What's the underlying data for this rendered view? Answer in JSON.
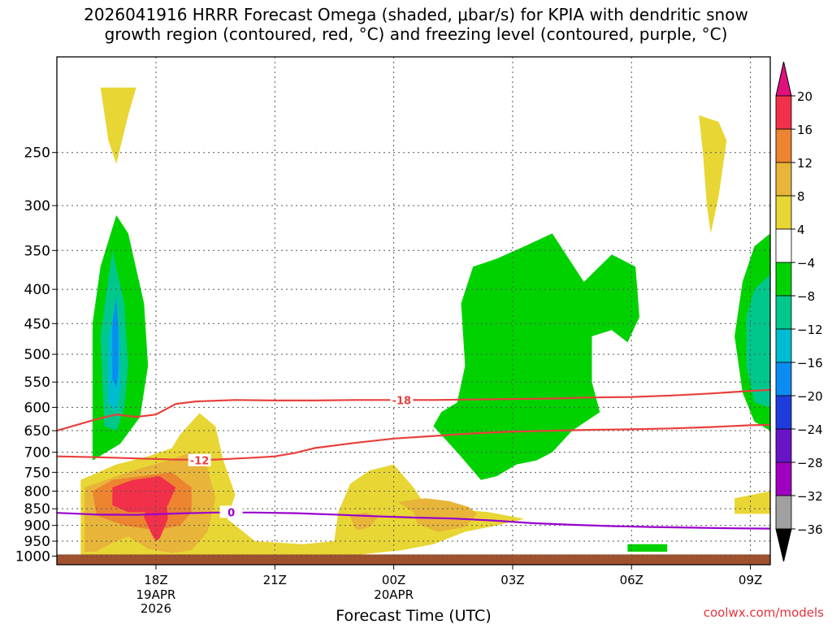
{
  "title_lines": [
    "2026041916 HRRR Forecast Omega (shaded, μbar/s) for KPIA with dendritic snow",
    "growth region (contoured, red, °C) and freezing level (contoured, purple, °C)"
  ],
  "credit": "coolwx.com/models",
  "colors": {
    "ground": "#a0522d",
    "grid": "#555555",
    "dgz_contour": "#e8403c",
    "freezing_contour": "#9900cc"
  },
  "chart_data": {
    "type": "heatmap",
    "xlabel": "Forecast Time (UTC)",
    "ylabel": "",
    "xlim_hours": [
      15.5,
      33.5
    ],
    "ylim_hpa": [
      1030,
      180
    ],
    "x_ticks": [
      {
        "hour": 18,
        "label": "18Z",
        "sub1": "19APR",
        "sub2": "2026"
      },
      {
        "hour": 21,
        "label": "21Z",
        "sub1": "",
        "sub2": ""
      },
      {
        "hour": 24,
        "label": "00Z",
        "sub1": "20APR",
        "sub2": ""
      },
      {
        "hour": 27,
        "label": "03Z",
        "sub1": "",
        "sub2": ""
      },
      {
        "hour": 30,
        "label": "06Z",
        "sub1": "",
        "sub2": ""
      },
      {
        "hour": 33,
        "label": "09Z",
        "sub1": "",
        "sub2": ""
      }
    ],
    "y_ticks": [
      250,
      300,
      350,
      400,
      450,
      500,
      550,
      600,
      650,
      700,
      750,
      800,
      850,
      900,
      950,
      1000
    ],
    "colorbar": {
      "labels": [
        "20",
        "16",
        "12",
        "8",
        "4",
        "−4",
        "−8",
        "−12",
        "−16",
        "−20",
        "−24",
        "−28",
        "−32",
        "−36"
      ],
      "bins": [
        {
          "range": "16 to 20",
          "color": "#f2304a"
        },
        {
          "range": "12 to 16",
          "color": "#ec8430"
        },
        {
          "range": "8 to 12",
          "color": "#e8b43a"
        },
        {
          "range": "4 to 8",
          "color": "#e8d634"
        },
        {
          "range": "-4 to 4",
          "color": "#ffffff"
        },
        {
          "range": "-8 to -4",
          "color": "#00d200"
        },
        {
          "range": "-12 to -8",
          "color": "#00c88c"
        },
        {
          "range": "-16 to -12",
          "color": "#00bcd2"
        },
        {
          "range": "-20 to -16",
          "color": "#0a8cf0"
        },
        {
          "range": "-24 to -20",
          "color": "#1e3cdc"
        },
        {
          "range": "-28 to -24",
          "color": "#6a14c8"
        },
        {
          "range": "-32 to -28",
          "color": "#a000c0"
        },
        {
          "range": "-36 to -32",
          "color": "#a0a0a0"
        }
      ],
      "top_arrow_color": "#e0107c",
      "bottom_arrow_color": "#000000"
    },
    "contours": [
      {
        "name": "dgz_-18",
        "label": "-18",
        "color": "#e8403c",
        "label_at": {
          "hour": 24.2,
          "hpa": 585
        },
        "points": [
          [
            15.5,
            650
          ],
          [
            16.5,
            625
          ],
          [
            17.0,
            615
          ],
          [
            17.5,
            620
          ],
          [
            18.0,
            615
          ],
          [
            18.5,
            593
          ],
          [
            19.0,
            588
          ],
          [
            20.0,
            585
          ],
          [
            21.0,
            586
          ],
          [
            22.0,
            586
          ],
          [
            23.0,
            585
          ],
          [
            24.0,
            585
          ],
          [
            25.0,
            585
          ],
          [
            26.0,
            584
          ],
          [
            27.0,
            583
          ],
          [
            28.0,
            582
          ],
          [
            29.0,
            580
          ],
          [
            30.0,
            579
          ],
          [
            31.0,
            576
          ],
          [
            32.0,
            572
          ],
          [
            33.0,
            567
          ],
          [
            33.5,
            565
          ]
        ]
      },
      {
        "name": "dgz_-12",
        "label": "-12",
        "color": "#e8403c",
        "label_at": {
          "hour": 19.1,
          "hpa": 720
        },
        "points": [
          [
            15.5,
            710
          ],
          [
            16.5,
            712
          ],
          [
            17.5,
            715
          ],
          [
            18.5,
            718
          ],
          [
            19.5,
            718
          ],
          [
            20.5,
            713
          ],
          [
            21.0,
            710
          ],
          [
            21.5,
            702
          ],
          [
            22.0,
            690
          ],
          [
            23.0,
            678
          ],
          [
            24.0,
            668
          ],
          [
            25.0,
            662
          ],
          [
            26.0,
            656
          ],
          [
            27.0,
            652
          ],
          [
            28.0,
            650
          ],
          [
            29.0,
            648
          ],
          [
            30.0,
            647
          ],
          [
            31.0,
            645
          ],
          [
            32.0,
            642
          ],
          [
            33.0,
            638
          ],
          [
            33.5,
            637
          ]
        ]
      },
      {
        "name": "freezing_0",
        "label": "0",
        "color": "#9900cc",
        "label_at": {
          "hour": 19.9,
          "hpa": 860
        },
        "points": [
          [
            15.5,
            862
          ],
          [
            16.5,
            867
          ],
          [
            17.5,
            868
          ],
          [
            18.5,
            864
          ],
          [
            19.5,
            861
          ],
          [
            20.5,
            861
          ],
          [
            21.5,
            863
          ],
          [
            22.5,
            867
          ],
          [
            23.5,
            872
          ],
          [
            24.5,
            876
          ],
          [
            25.5,
            879
          ],
          [
            26.5,
            885
          ],
          [
            27.5,
            893
          ],
          [
            28.5,
            898
          ],
          [
            29.5,
            902
          ],
          [
            30.5,
            905
          ],
          [
            31.5,
            907
          ],
          [
            32.5,
            909
          ],
          [
            33.5,
            910
          ]
        ]
      }
    ],
    "omega_regions": [
      {
        "bin": "-8 to -4",
        "points": [
          [
            16.4,
            720
          ],
          [
            16.4,
            450
          ],
          [
            16.6,
            370
          ],
          [
            17.0,
            310
          ],
          [
            17.3,
            330
          ],
          [
            17.7,
            420
          ],
          [
            17.8,
            520
          ],
          [
            17.6,
            620
          ],
          [
            17.1,
            680
          ]
        ]
      },
      {
        "bin": "-12 to -8",
        "points": [
          [
            16.7,
            640
          ],
          [
            16.6,
            470
          ],
          [
            16.9,
            350
          ],
          [
            17.2,
            420
          ],
          [
            17.3,
            520
          ],
          [
            17.2,
            600
          ],
          [
            17.0,
            650
          ]
        ]
      },
      {
        "bin": "-16 to -12",
        "points": [
          [
            16.8,
            590
          ],
          [
            16.8,
            470
          ],
          [
            17.0,
            420
          ],
          [
            17.1,
            480
          ],
          [
            17.1,
            560
          ],
          [
            17.0,
            610
          ]
        ]
      },
      {
        "bin": "-20 to -16",
        "points": [
          [
            16.9,
            545
          ],
          [
            16.9,
            450
          ],
          [
            17.0,
            410
          ],
          [
            17.05,
            455
          ],
          [
            17.05,
            530
          ],
          [
            17.0,
            560
          ]
        ]
      },
      {
        "bin": "-8 to -4",
        "points": [
          [
            26.2,
            770
          ],
          [
            25.6,
            700
          ],
          [
            25.0,
            640
          ],
          [
            25.2,
            610
          ],
          [
            25.6,
            590
          ],
          [
            25.8,
            520
          ],
          [
            25.7,
            420
          ],
          [
            26.0,
            370
          ],
          [
            26.6,
            360
          ],
          [
            27.3,
            345
          ],
          [
            28.0,
            330
          ],
          [
            28.8,
            390
          ],
          [
            29.5,
            355
          ],
          [
            30.1,
            370
          ],
          [
            30.2,
            440
          ],
          [
            29.9,
            480
          ],
          [
            29.5,
            460
          ],
          [
            29.0,
            470
          ],
          [
            29.0,
            550
          ],
          [
            29.2,
            610
          ],
          [
            28.5,
            650
          ],
          [
            28.0,
            700
          ],
          [
            27.6,
            720
          ],
          [
            27.1,
            730
          ],
          [
            26.6,
            760
          ]
        ]
      },
      {
        "bin": "-8 to -4",
        "points": [
          [
            33.5,
            330
          ],
          [
            33.5,
            650
          ],
          [
            33.1,
            630
          ],
          [
            32.8,
            570
          ],
          [
            32.6,
            470
          ],
          [
            32.8,
            390
          ],
          [
            33.1,
            345
          ]
        ]
      },
      {
        "bin": "-12 to -8",
        "points": [
          [
            33.5,
            380
          ],
          [
            33.5,
            600
          ],
          [
            33.1,
            590
          ],
          [
            32.9,
            520
          ],
          [
            32.9,
            440
          ],
          [
            33.1,
            400
          ]
        ]
      },
      {
        "bin": "-8 to -4",
        "points": [
          [
            29.9,
            960
          ],
          [
            30.9,
            960
          ],
          [
            30.9,
            985
          ],
          [
            29.9,
            985
          ]
        ]
      },
      {
        "bin": "4 to 8",
        "points": [
          [
            16.1,
            1000
          ],
          [
            16.1,
            770
          ],
          [
            17.0,
            730
          ],
          [
            17.8,
            710
          ],
          [
            18.4,
            690
          ],
          [
            18.6,
            660
          ],
          [
            18.8,
            640
          ],
          [
            19.1,
            612
          ],
          [
            19.5,
            640
          ],
          [
            19.7,
            720
          ],
          [
            20.0,
            810
          ],
          [
            19.8,
            880
          ],
          [
            20.5,
            950
          ],
          [
            21.7,
            960
          ],
          [
            22.5,
            950
          ],
          [
            22.6,
            860
          ],
          [
            22.9,
            780
          ],
          [
            23.4,
            745
          ],
          [
            24.0,
            730
          ],
          [
            24.5,
            790
          ],
          [
            24.8,
            840
          ],
          [
            25.5,
            850
          ],
          [
            26.4,
            860
          ],
          [
            27.3,
            880
          ],
          [
            26.6,
            900
          ],
          [
            25.8,
            920
          ],
          [
            25.4,
            940
          ],
          [
            25.0,
            960
          ],
          [
            24.2,
            980
          ],
          [
            23.5,
            990
          ],
          [
            22.8,
            1000
          ]
        ]
      },
      {
        "bin": "8 to 12",
        "points": [
          [
            16.2,
            985
          ],
          [
            16.2,
            790
          ],
          [
            17.0,
            760
          ],
          [
            17.6,
            740
          ],
          [
            18.3,
            720
          ],
          [
            18.9,
            700
          ],
          [
            19.3,
            740
          ],
          [
            19.5,
            820
          ],
          [
            19.3,
            920
          ],
          [
            18.9,
            980
          ],
          [
            18.4,
            990
          ],
          [
            17.8,
            975
          ],
          [
            17.3,
            935
          ],
          [
            16.9,
            955
          ],
          [
            16.5,
            985
          ]
        ]
      },
      {
        "bin": "12 to 16",
        "points": [
          [
            16.5,
            870
          ],
          [
            16.4,
            800
          ],
          [
            16.9,
            770
          ],
          [
            17.6,
            760
          ],
          [
            18.4,
            750
          ],
          [
            18.9,
            790
          ],
          [
            18.9,
            860
          ],
          [
            18.6,
            900
          ],
          [
            18.0,
            915
          ],
          [
            17.2,
            900
          ]
        ]
      },
      {
        "bin": "16 to 20",
        "points": [
          [
            16.9,
            840
          ],
          [
            16.9,
            790
          ],
          [
            17.4,
            770
          ],
          [
            18.1,
            760
          ],
          [
            18.5,
            790
          ],
          [
            18.3,
            840
          ],
          [
            17.8,
            860
          ],
          [
            17.3,
            860
          ]
        ]
      },
      {
        "bin": "16 to 20",
        "points": [
          [
            17.9,
            930
          ],
          [
            17.7,
            875
          ],
          [
            17.9,
            790
          ],
          [
            18.1,
            770
          ],
          [
            18.25,
            800
          ],
          [
            18.3,
            880
          ],
          [
            18.1,
            940
          ],
          [
            18.0,
            950
          ]
        ]
      },
      {
        "bin": "8 to 12",
        "points": [
          [
            24.5,
            860
          ],
          [
            24.1,
            830
          ],
          [
            24.8,
            820
          ],
          [
            25.4,
            828
          ],
          [
            25.9,
            845
          ],
          [
            26.1,
            865
          ],
          [
            25.8,
            905
          ],
          [
            25.1,
            920
          ],
          [
            24.6,
            895
          ]
        ]
      },
      {
        "bin": "8 to 12",
        "points": [
          [
            23.0,
            905
          ],
          [
            22.9,
            870
          ],
          [
            23.3,
            860
          ],
          [
            23.6,
            875
          ],
          [
            23.4,
            905
          ],
          [
            23.1,
            915
          ]
        ]
      },
      {
        "bin": "4 to 8",
        "points": [
          [
            32.6,
            820
          ],
          [
            33.5,
            800
          ],
          [
            33.5,
            865
          ],
          [
            32.6,
            865
          ]
        ]
      },
      {
        "bin": "4 to 8",
        "points": [
          [
            16.6,
            200
          ],
          [
            17.5,
            200
          ],
          [
            17.3,
            220
          ],
          [
            17.0,
            260
          ],
          [
            16.8,
            240
          ]
        ]
      },
      {
        "bin": "4 to 8",
        "points": [
          [
            31.7,
            220
          ],
          [
            32.2,
            225
          ],
          [
            32.4,
            240
          ],
          [
            32.2,
            290
          ],
          [
            32.0,
            330
          ],
          [
            31.9,
            300
          ],
          [
            31.8,
            250
          ]
        ]
      }
    ]
  }
}
